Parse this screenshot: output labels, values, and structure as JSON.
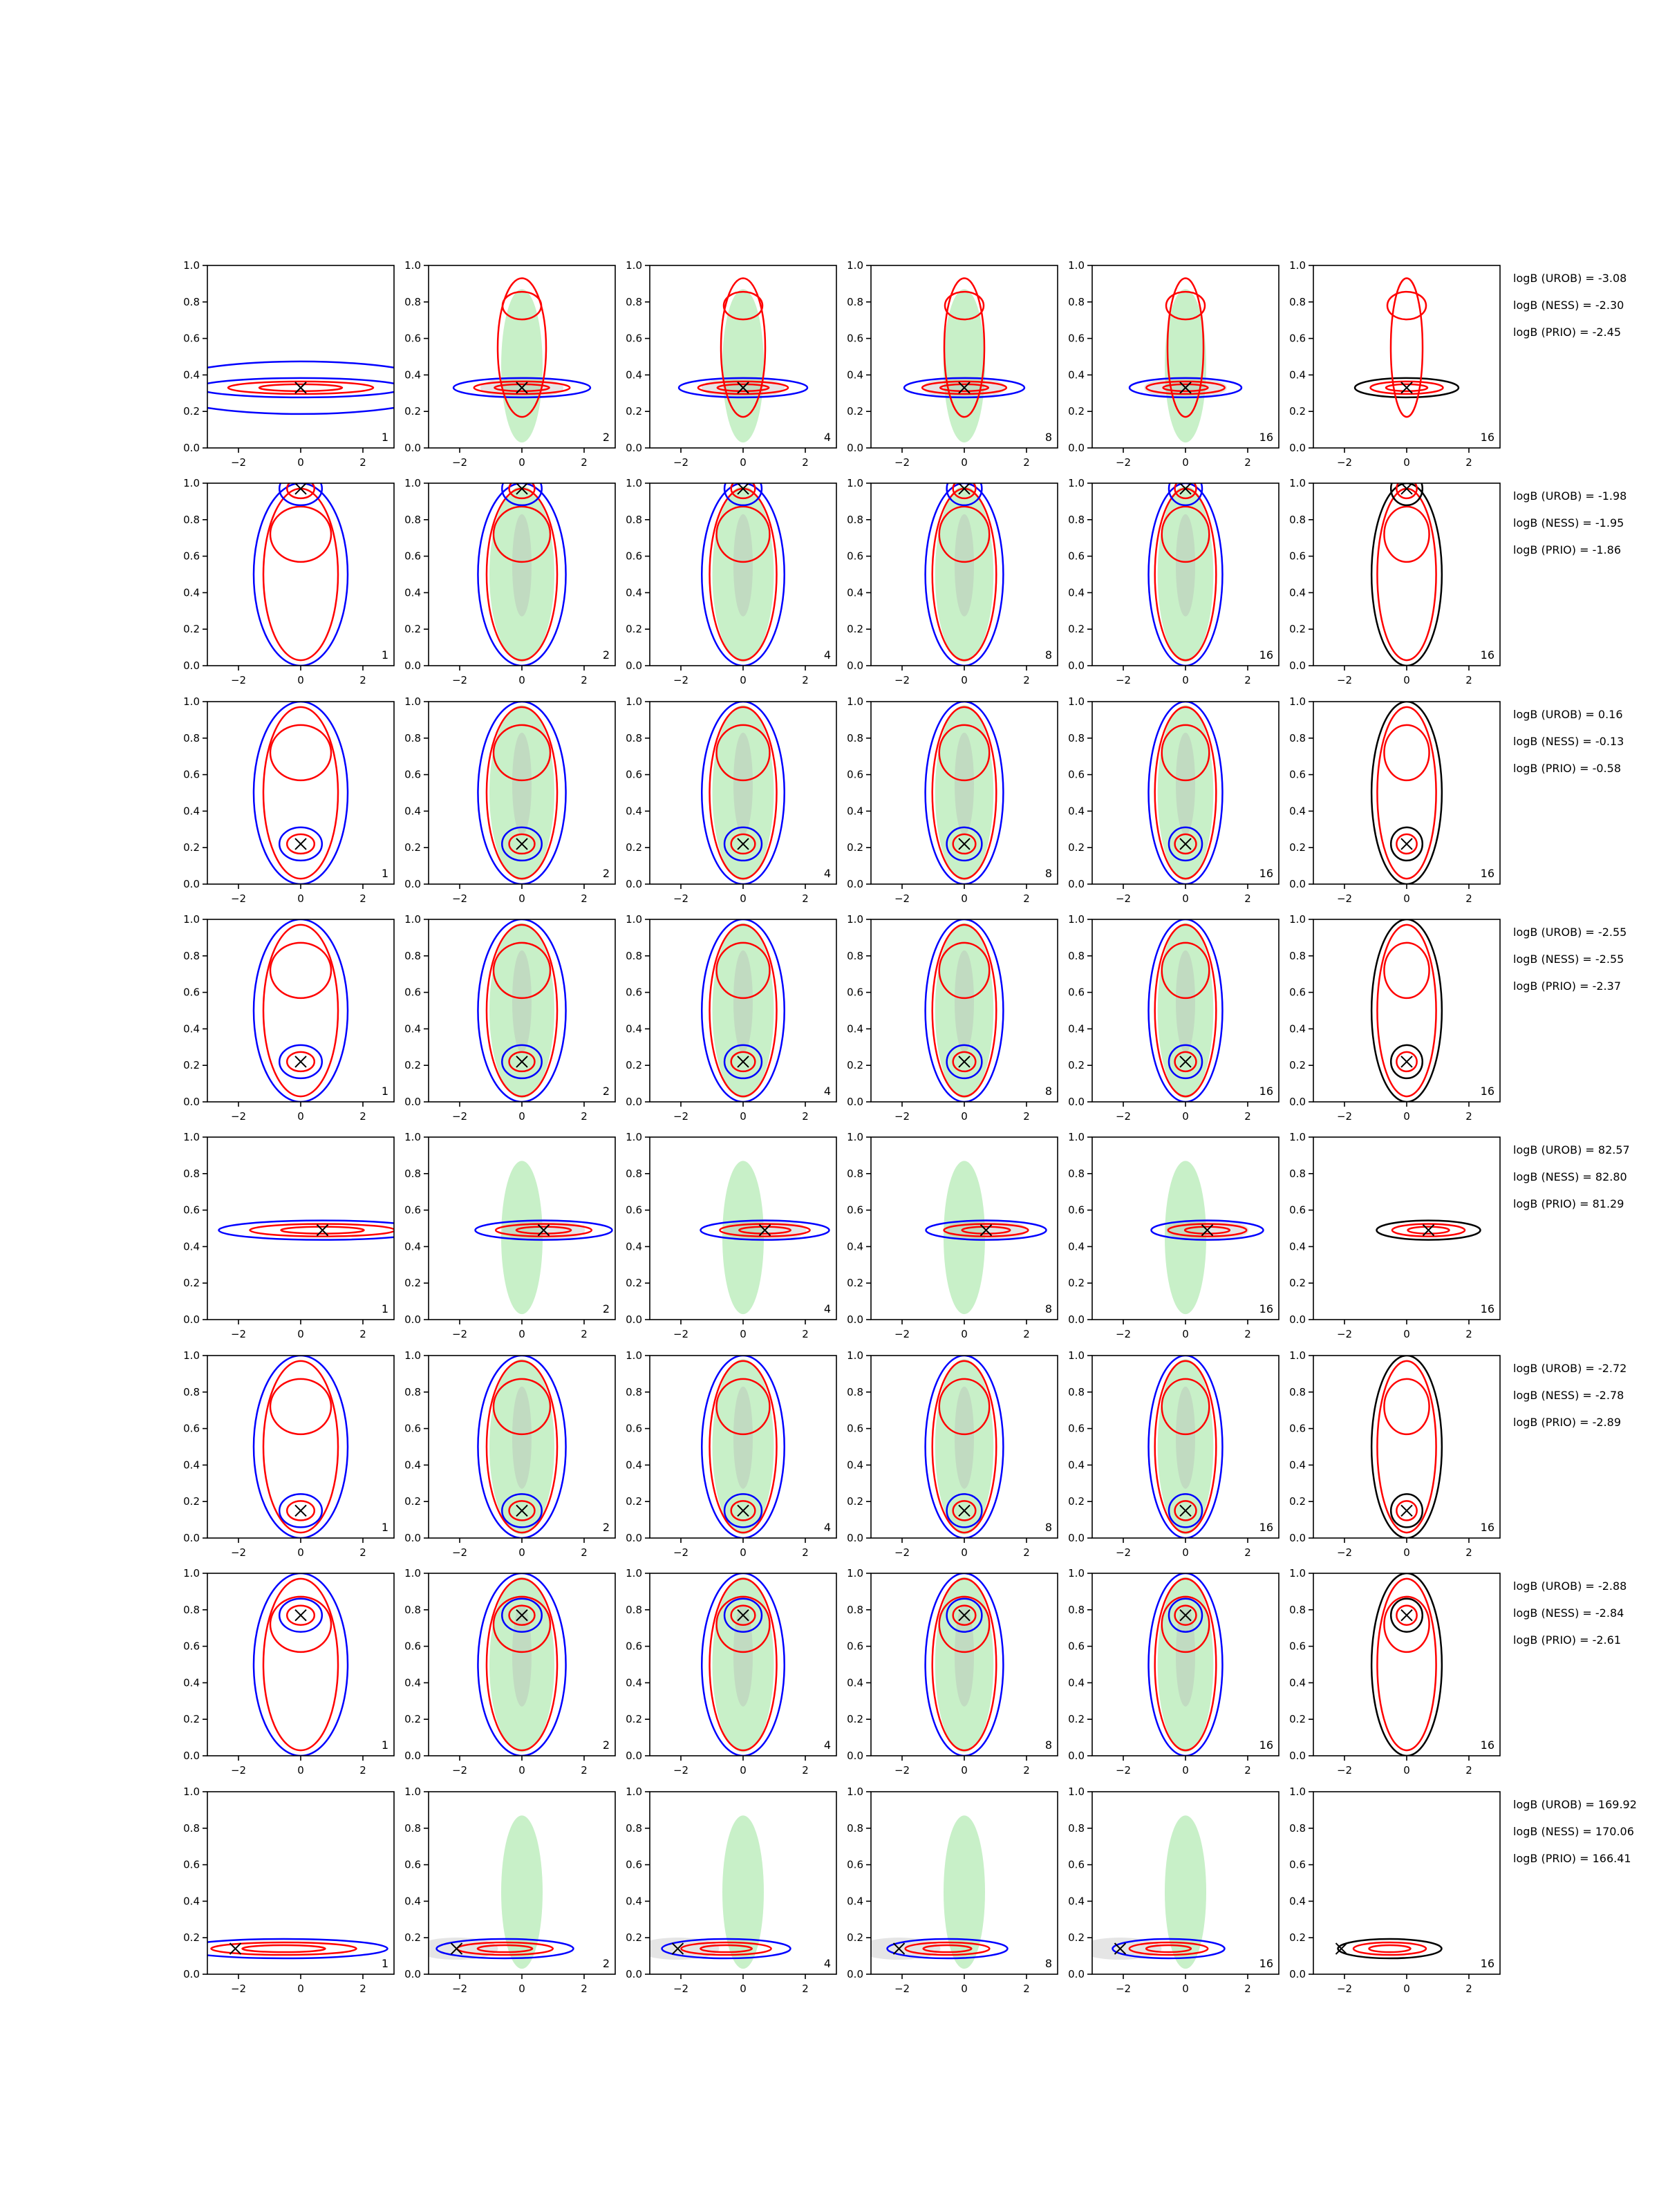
{
  "figure": {
    "rows": 8,
    "cols": 6,
    "x_range": [
      -3,
      3
    ],
    "y_range": [
      0,
      1
    ],
    "x_ticks": [
      "−2",
      "0",
      "2"
    ],
    "y_ticks": [
      "0.0",
      "0.2",
      "0.4",
      "0.6",
      "0.8",
      "1.0"
    ],
    "panel_labels": [
      "1",
      "2",
      "4",
      "8",
      "16",
      "16"
    ],
    "colors": {
      "blue": "#0000ff",
      "red": "#ff0000",
      "black": "#000000",
      "fill_outer": "#c8f0c8",
      "fill_inner": "#b4b4b4"
    }
  },
  "chart_data": {
    "type": "contour",
    "title": "",
    "xlabel": "",
    "ylabel": "",
    "xlim": [
      -3,
      3
    ],
    "ylim": [
      0,
      1
    ],
    "rows": [
      {
        "truth": {
          "x": 0.0,
          "y": 0.33
        },
        "shape": "flat",
        "logB": [
          "logB (UROB) = -3.08",
          "logB (NESS) = -2.30",
          "logB (PRIO) = -2.45"
        ]
      },
      {
        "truth": {
          "x": 0.0,
          "y": 0.97
        },
        "shape": "tall",
        "logB": [
          "logB (UROB) = -1.98",
          "logB (NESS) = -1.95",
          "logB (PRIO) = -1.86"
        ]
      },
      {
        "truth": {
          "x": 0.0,
          "y": 0.22
        },
        "shape": "tall",
        "logB": [
          "logB (UROB) = 0.16",
          "logB (NESS) = -0.13",
          "logB (PRIO) = -0.58"
        ]
      },
      {
        "truth": {
          "x": 0.0,
          "y": 0.22
        },
        "shape": "tall",
        "logB": [
          "logB (UROB) = -2.55",
          "logB (NESS) = -2.55",
          "logB (PRIO) = -2.37"
        ]
      },
      {
        "truth": {
          "x": 0.7,
          "y": 0.49
        },
        "shape": "flat",
        "logB": [
          "logB (UROB) = 82.57",
          "logB (NESS) = 82.80",
          "logB (PRIO) = 81.29"
        ]
      },
      {
        "truth": {
          "x": 0.0,
          "y": 0.15
        },
        "shape": "tall",
        "logB": [
          "logB (UROB) = -2.72",
          "logB (NESS) = -2.78",
          "logB (PRIO) = -2.89"
        ]
      },
      {
        "truth": {
          "x": 0.0,
          "y": 0.77
        },
        "shape": "tall",
        "logB": [
          "logB (UROB) = -2.88",
          "logB (NESS) = -2.84",
          "logB (PRIO) = -2.61"
        ]
      },
      {
        "truth": {
          "x": -2.1,
          "y": 0.14
        },
        "shape": "flat",
        "logB": [
          "logB (UROB) = 169.92",
          "logB (NESS) = 170.06",
          "logB (PRIO) = 166.41"
        ]
      }
    ]
  }
}
